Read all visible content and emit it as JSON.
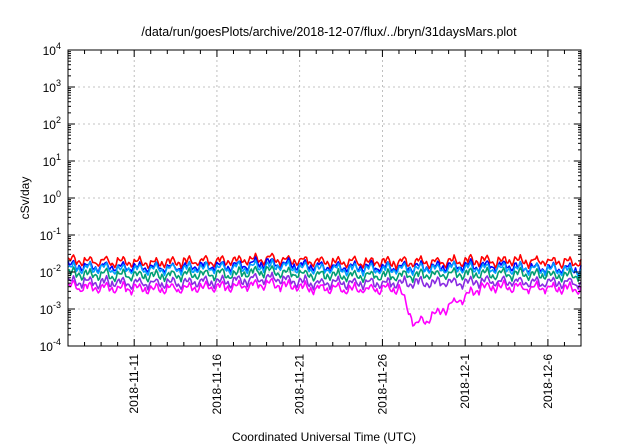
{
  "chart_data": {
    "type": "line",
    "title": "/data/run/goesPlots/archive/2018-12-07/flux/../bryn/31daysMars.plot",
    "xlabel": "Coordinated Universal Time (UTC)",
    "ylabel": "cSv/day",
    "yscale": "log",
    "grid": true,
    "legend": "none",
    "xlim": [
      "2018-11-07",
      "2018-12-08"
    ],
    "ylim": [
      0.0001,
      10000
    ],
    "x_ticks": [
      "2018-11-11",
      "2018-11-16",
      "2018-11-21",
      "2018-11-26",
      "2018-12-1",
      "2018-12-6"
    ],
    "y_ticks": [
      {
        "base": "10",
        "exp": "-4"
      },
      {
        "base": "10",
        "exp": "-3"
      },
      {
        "base": "10",
        "exp": "-2"
      },
      {
        "base": "10",
        "exp": "-1"
      },
      {
        "base": "10",
        "exp": "0"
      },
      {
        "base": "10",
        "exp": "1"
      },
      {
        "base": "10",
        "exp": "2"
      },
      {
        "base": "10",
        "exp": "3"
      },
      {
        "base": "10",
        "exp": "4"
      }
    ],
    "series": [
      {
        "color": "#ff0000",
        "x": [
          "2018-11-07",
          "2018-11-12",
          "2018-11-17",
          "2018-11-19",
          "2018-11-22",
          "2018-11-27",
          "2018-12-02",
          "2018-12-08"
        ],
        "values": [
          0.02,
          0.018,
          0.02,
          0.023,
          0.019,
          0.018,
          0.02,
          0.019
        ]
      },
      {
        "color": "#0000ff",
        "x": [
          "2018-11-07",
          "2018-11-12",
          "2018-11-17",
          "2018-11-19",
          "2018-11-22",
          "2018-11-27",
          "2018-12-02",
          "2018-12-08"
        ],
        "values": [
          0.015,
          0.013,
          0.015,
          0.018,
          0.014,
          0.013,
          0.015,
          0.012
        ]
      },
      {
        "color": "#00a0ff",
        "x": [
          "2018-11-07",
          "2018-11-12",
          "2018-11-17",
          "2018-11-19",
          "2018-11-22",
          "2018-11-27",
          "2018-12-02",
          "2018-12-08"
        ],
        "values": [
          0.013,
          0.012,
          0.013,
          0.015,
          0.012,
          0.012,
          0.013,
          0.011
        ]
      },
      {
        "color": "#009e73",
        "x": [
          "2018-11-07",
          "2018-11-12",
          "2018-11-17",
          "2018-11-19",
          "2018-11-22",
          "2018-11-27",
          "2018-12-02",
          "2018-12-08"
        ],
        "values": [
          0.009,
          0.008,
          0.009,
          0.011,
          0.008,
          0.008,
          0.009,
          0.008
        ]
      },
      {
        "color": "#8a2be2",
        "x": [
          "2018-11-07",
          "2018-11-12",
          "2018-11-17",
          "2018-11-19",
          "2018-11-22",
          "2018-11-27",
          "2018-12-02",
          "2018-12-08"
        ],
        "values": [
          0.0055,
          0.005,
          0.0055,
          0.007,
          0.005,
          0.005,
          0.0055,
          0.005
        ]
      },
      {
        "color": "#ff00ff",
        "x": [
          "2018-11-07",
          "2018-11-12",
          "2018-11-17",
          "2018-11-19",
          "2018-11-22",
          "2018-11-27",
          "2018-11-28",
          "2018-12-02",
          "2018-12-08"
        ],
        "values": [
          0.004,
          0.0035,
          0.004,
          0.005,
          0.0035,
          0.0035,
          0.00035,
          0.004,
          0.0035
        ]
      }
    ]
  }
}
